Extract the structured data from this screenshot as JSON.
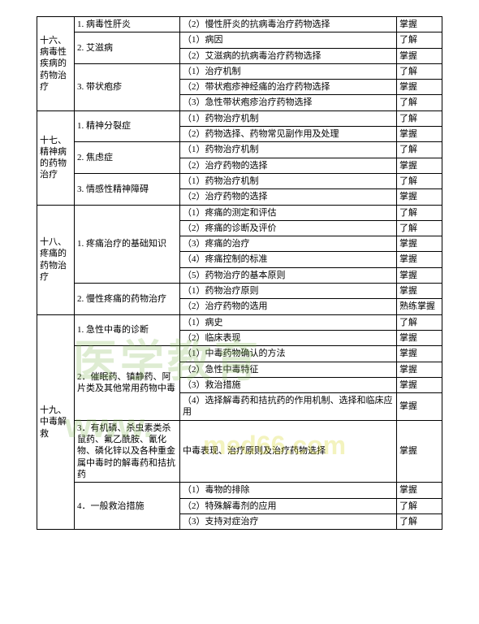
{
  "sections": [
    {
      "id": "s16",
      "label": "十六、病毒性疾病的药物治疗",
      "rowspan": 6,
      "topics": [
        {
          "label": "1. 病毒性肝炎",
          "rowspan": 1,
          "items": [
            {
              "desc": "（2）慢性肝炎的抗病毒治疗药物选择",
              "req": "掌握"
            }
          ]
        },
        {
          "label": "2. 艾滋病",
          "rowspan": 2,
          "items": [
            {
              "desc": "（1）病因",
              "req": "了解"
            },
            {
              "desc": "（2）艾滋病的抗病毒治疗药物选择",
              "req": "掌握"
            }
          ]
        },
        {
          "label": "3. 带状疱疹",
          "rowspan": 3,
          "items": [
            {
              "desc": "（1）治疗机制",
              "req": "了解"
            },
            {
              "desc": "（2）带状疱疹神经痛的治疗药物选择",
              "req": "掌握"
            },
            {
              "desc": "（3）急性带状疱疹治疗药物选择",
              "req": "了解"
            }
          ]
        }
      ]
    },
    {
      "id": "s17",
      "label": "十七、精神病的药物治疗",
      "rowspan": 6,
      "topics": [
        {
          "label": "1. 精神分裂症",
          "rowspan": 2,
          "items": [
            {
              "desc": "（1）药物治疗机制",
              "req": "了解"
            },
            {
              "desc": "（2）药物选择、药物常见副作用及处理",
              "req": "掌握"
            }
          ]
        },
        {
          "label": "2. 焦虑症",
          "rowspan": 2,
          "items": [
            {
              "desc": "（1）药物治疗机制",
              "req": "了解"
            },
            {
              "desc": "（2）治疗药物的选择",
              "req": "掌握"
            }
          ]
        },
        {
          "label": "3. 情感性精神障碍",
          "rowspan": 2,
          "items": [
            {
              "desc": "（1）药物治疗机制",
              "req": "了解"
            },
            {
              "desc": "（2）治疗药物的选择",
              "req": "掌握"
            }
          ]
        }
      ]
    },
    {
      "id": "s18",
      "label": "十八、疼痛的药物治疗",
      "rowspan": 7,
      "topics": [
        {
          "label": "1. 疼痛治疗的基础知识",
          "rowspan": 5,
          "items": [
            {
              "desc": "（1）疼痛的测定和评估",
              "req": "了解"
            },
            {
              "desc": "（2）疼痛的诊断及评价",
              "req": "了解"
            },
            {
              "desc": "（3）疼痛的治疗",
              "req": "掌握"
            },
            {
              "desc": "（4）疼痛控制的标准",
              "req": "掌握"
            },
            {
              "desc": "（5）药物治疗的基本原则",
              "req": "掌握"
            }
          ]
        },
        {
          "label": "2. 慢性疼痛的药物治疗",
          "rowspan": 2,
          "items": [
            {
              "desc": "（1）药物治疗原则",
              "req": "掌握"
            },
            {
              "desc": "（2）治疗药物的选用",
              "req": "熟练掌握"
            }
          ]
        }
      ]
    },
    {
      "id": "s19",
      "label": "十九、中毒解救",
      "rowspan": 10,
      "topics": [
        {
          "label": "1. 急性中毒的诊断",
          "rowspan": 2,
          "items": [
            {
              "desc": "（1）病史",
              "req": "了解"
            },
            {
              "desc": "（2）临床表现",
              "req": "掌握"
            }
          ]
        },
        {
          "label": "2．催眠药、镇静药、阿片类及其他常用药物中毒",
          "rowspan": 4,
          "items": [
            {
              "desc": "（1）中毒药物确认的方法",
              "req": "掌握"
            },
            {
              "desc": "（2）急性中毒特征",
              "req": "掌握"
            },
            {
              "desc": "（3）救治措施",
              "req": "掌握"
            },
            {
              "desc": "（4）选择解毒药和拮抗药的作用机制、选择和临床应用",
              "req": "掌握"
            }
          ]
        },
        {
          "label": "3．有机磷、杀虫素类杀鼠药、氟乙酰胺、氰化物、磷化锌以及各种重金属中毒时的解毒药和拮抗药",
          "rowspan": 1,
          "items": [
            {
              "desc": "中毒表现、治疗原则及治疗药物选择",
              "req": "掌握"
            }
          ]
        },
        {
          "label": "4．一般救治措施",
          "rowspan": 3,
          "items": [
            {
              "desc": "（1）毒物的排除",
              "req": "掌握"
            },
            {
              "desc": "（2）特殊解毒剂的应用",
              "req": "了解"
            },
            {
              "desc": "（3）支持对症治疗",
              "req": "了解"
            }
          ]
        }
      ]
    }
  ],
  "watermarks": {
    "wm1": "医学教育",
    "wm2": "www.",
    "wm3": "med66.com"
  }
}
